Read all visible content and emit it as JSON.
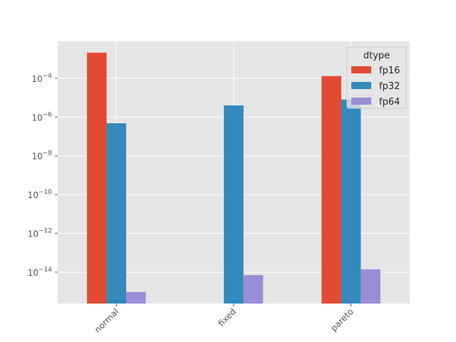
{
  "chart_data": {
    "type": "bar",
    "title": "",
    "xlabel": "",
    "ylabel": "",
    "yscale": "log",
    "ylim": [
      2.4e-16,
      0.0081
    ],
    "categories": [
      "normal",
      "fixed",
      "pareto"
    ],
    "series": [
      {
        "name": "fp16",
        "color": "#E24A33",
        "values": [
          0.0021,
          null,
          0.00013
        ]
      },
      {
        "name": "fp32",
        "color": "#348ABD",
        "values": [
          4.8e-07,
          4e-06,
          8e-06
        ]
      },
      {
        "name": "fp64",
        "color": "#988ED5",
        "values": [
          9.5e-16,
          7e-15,
          1.4e-14
        ]
      }
    ],
    "yticks": [
      {
        "exp": -4,
        "label": "10",
        "sup": "−4"
      },
      {
        "exp": -6,
        "label": "10",
        "sup": "−6"
      },
      {
        "exp": -8,
        "label": "10",
        "sup": "−8"
      },
      {
        "exp": -10,
        "label": "10",
        "sup": "−10"
      },
      {
        "exp": -12,
        "label": "10",
        "sup": "−12"
      },
      {
        "exp": -14,
        "label": "10",
        "sup": "−14"
      }
    ],
    "legend": {
      "title": "dtype",
      "position": "upper right",
      "entries": [
        "fp16",
        "fp32",
        "fp64"
      ]
    },
    "grid": true,
    "style": "ggplot"
  }
}
